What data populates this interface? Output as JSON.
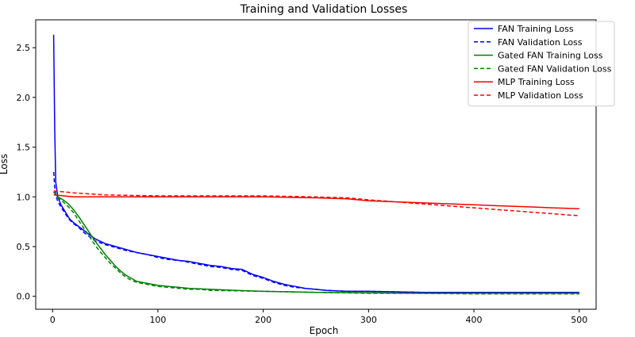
{
  "chart_data": {
    "type": "line",
    "title": "Training and Validation Losses",
    "xlabel": "Epoch",
    "ylabel": "Loss",
    "xlim": [
      -16,
      516
    ],
    "ylim": [
      -0.13,
      2.78
    ],
    "xticks": [
      0,
      100,
      200,
      300,
      400,
      500
    ],
    "yticks": [
      0.0,
      0.5,
      1.0,
      1.5,
      2.0,
      2.5
    ],
    "xtick_labels": [
      "0",
      "100",
      "200",
      "300",
      "400",
      "500"
    ],
    "ytick_labels": [
      "0.0",
      "0.5",
      "1.0",
      "1.5",
      "2.0",
      "2.5"
    ],
    "grid": false,
    "legend_position": "top-right",
    "series": [
      {
        "name": "FAN Training Loss",
        "color": "#0000ff",
        "style": "solid",
        "x": [
          1,
          2,
          3,
          5,
          8,
          12,
          16,
          20,
          25,
          30,
          35,
          40,
          50,
          60,
          70,
          80,
          90,
          100,
          110,
          120,
          130,
          140,
          150,
          160,
          170,
          180,
          190,
          200,
          210,
          220,
          230,
          240,
          250,
          260,
          280,
          300,
          350,
          400,
          450,
          500
        ],
        "y": [
          2.63,
          1.7,
          1.15,
          1.0,
          0.92,
          0.85,
          0.78,
          0.74,
          0.7,
          0.66,
          0.62,
          0.58,
          0.53,
          0.5,
          0.47,
          0.44,
          0.42,
          0.4,
          0.38,
          0.36,
          0.35,
          0.33,
          0.31,
          0.3,
          0.28,
          0.27,
          0.22,
          0.19,
          0.15,
          0.12,
          0.1,
          0.08,
          0.07,
          0.06,
          0.05,
          0.05,
          0.04,
          0.04,
          0.04,
          0.04
        ]
      },
      {
        "name": "FAN Validation Loss",
        "color": "#0000ff",
        "style": "dashed",
        "x": [
          1,
          2,
          3,
          5,
          8,
          12,
          16,
          20,
          25,
          30,
          35,
          40,
          50,
          60,
          70,
          80,
          90,
          100,
          110,
          120,
          130,
          140,
          150,
          160,
          170,
          180,
          190,
          200,
          210,
          220,
          230,
          240,
          250,
          260,
          280,
          300,
          350,
          400,
          450,
          500
        ],
        "y": [
          1.25,
          1.1,
          1.02,
          0.95,
          0.9,
          0.83,
          0.77,
          0.73,
          0.69,
          0.64,
          0.6,
          0.56,
          0.52,
          0.49,
          0.46,
          0.44,
          0.42,
          0.39,
          0.37,
          0.36,
          0.34,
          0.32,
          0.3,
          0.29,
          0.27,
          0.26,
          0.21,
          0.18,
          0.14,
          0.11,
          0.09,
          0.08,
          0.07,
          0.06,
          0.05,
          0.05,
          0.04,
          0.04,
          0.04,
          0.04
        ]
      },
      {
        "name": "Gated FAN Training Loss",
        "color": "#008000",
        "style": "solid",
        "x": [
          1,
          5,
          10,
          15,
          20,
          25,
          30,
          35,
          40,
          45,
          50,
          55,
          60,
          65,
          70,
          75,
          80,
          85,
          90,
          100,
          110,
          120,
          130,
          140,
          150,
          175,
          200,
          250,
          300,
          350,
          400,
          450,
          500
        ],
        "y": [
          1.05,
          1.0,
          0.97,
          0.93,
          0.87,
          0.8,
          0.72,
          0.64,
          0.56,
          0.49,
          0.42,
          0.36,
          0.3,
          0.25,
          0.21,
          0.18,
          0.15,
          0.14,
          0.13,
          0.11,
          0.1,
          0.09,
          0.08,
          0.075,
          0.07,
          0.06,
          0.05,
          0.04,
          0.035,
          0.03,
          0.03,
          0.03,
          0.03
        ]
      },
      {
        "name": "Gated FAN Validation Loss",
        "color": "#008000",
        "style": "dashed",
        "x": [
          1,
          5,
          10,
          15,
          20,
          25,
          30,
          35,
          40,
          45,
          50,
          55,
          60,
          65,
          70,
          75,
          80,
          85,
          90,
          100,
          110,
          120,
          130,
          140,
          150,
          175,
          200,
          250,
          300,
          350,
          400,
          450,
          500
        ],
        "y": [
          1.05,
          0.99,
          0.95,
          0.9,
          0.84,
          0.76,
          0.68,
          0.6,
          0.52,
          0.45,
          0.39,
          0.33,
          0.28,
          0.23,
          0.19,
          0.16,
          0.14,
          0.13,
          0.12,
          0.1,
          0.09,
          0.08,
          0.07,
          0.07,
          0.06,
          0.055,
          0.05,
          0.04,
          0.03,
          0.03,
          0.025,
          0.025,
          0.025
        ]
      },
      {
        "name": "MLP Training Loss",
        "color": "#ff0000",
        "style": "solid",
        "x": [
          1,
          20,
          50,
          100,
          150,
          200,
          250,
          280,
          300,
          325,
          350,
          375,
          400,
          425,
          450,
          475,
          500
        ],
        "y": [
          1.02,
          1.0,
          1.0,
          1.0,
          1.0,
          1.0,
          0.99,
          0.98,
          0.96,
          0.95,
          0.94,
          0.93,
          0.92,
          0.91,
          0.9,
          0.89,
          0.88
        ]
      },
      {
        "name": "MLP Validation Loss",
        "color": "#ff0000",
        "style": "dashed",
        "x": [
          1,
          20,
          50,
          100,
          150,
          200,
          250,
          280,
          300,
          325,
          350,
          375,
          400,
          425,
          450,
          475,
          500
        ],
        "y": [
          1.06,
          1.04,
          1.02,
          1.01,
          1.01,
          1.01,
          1.0,
          0.99,
          0.97,
          0.95,
          0.93,
          0.91,
          0.89,
          0.87,
          0.85,
          0.83,
          0.81
        ]
      }
    ]
  }
}
